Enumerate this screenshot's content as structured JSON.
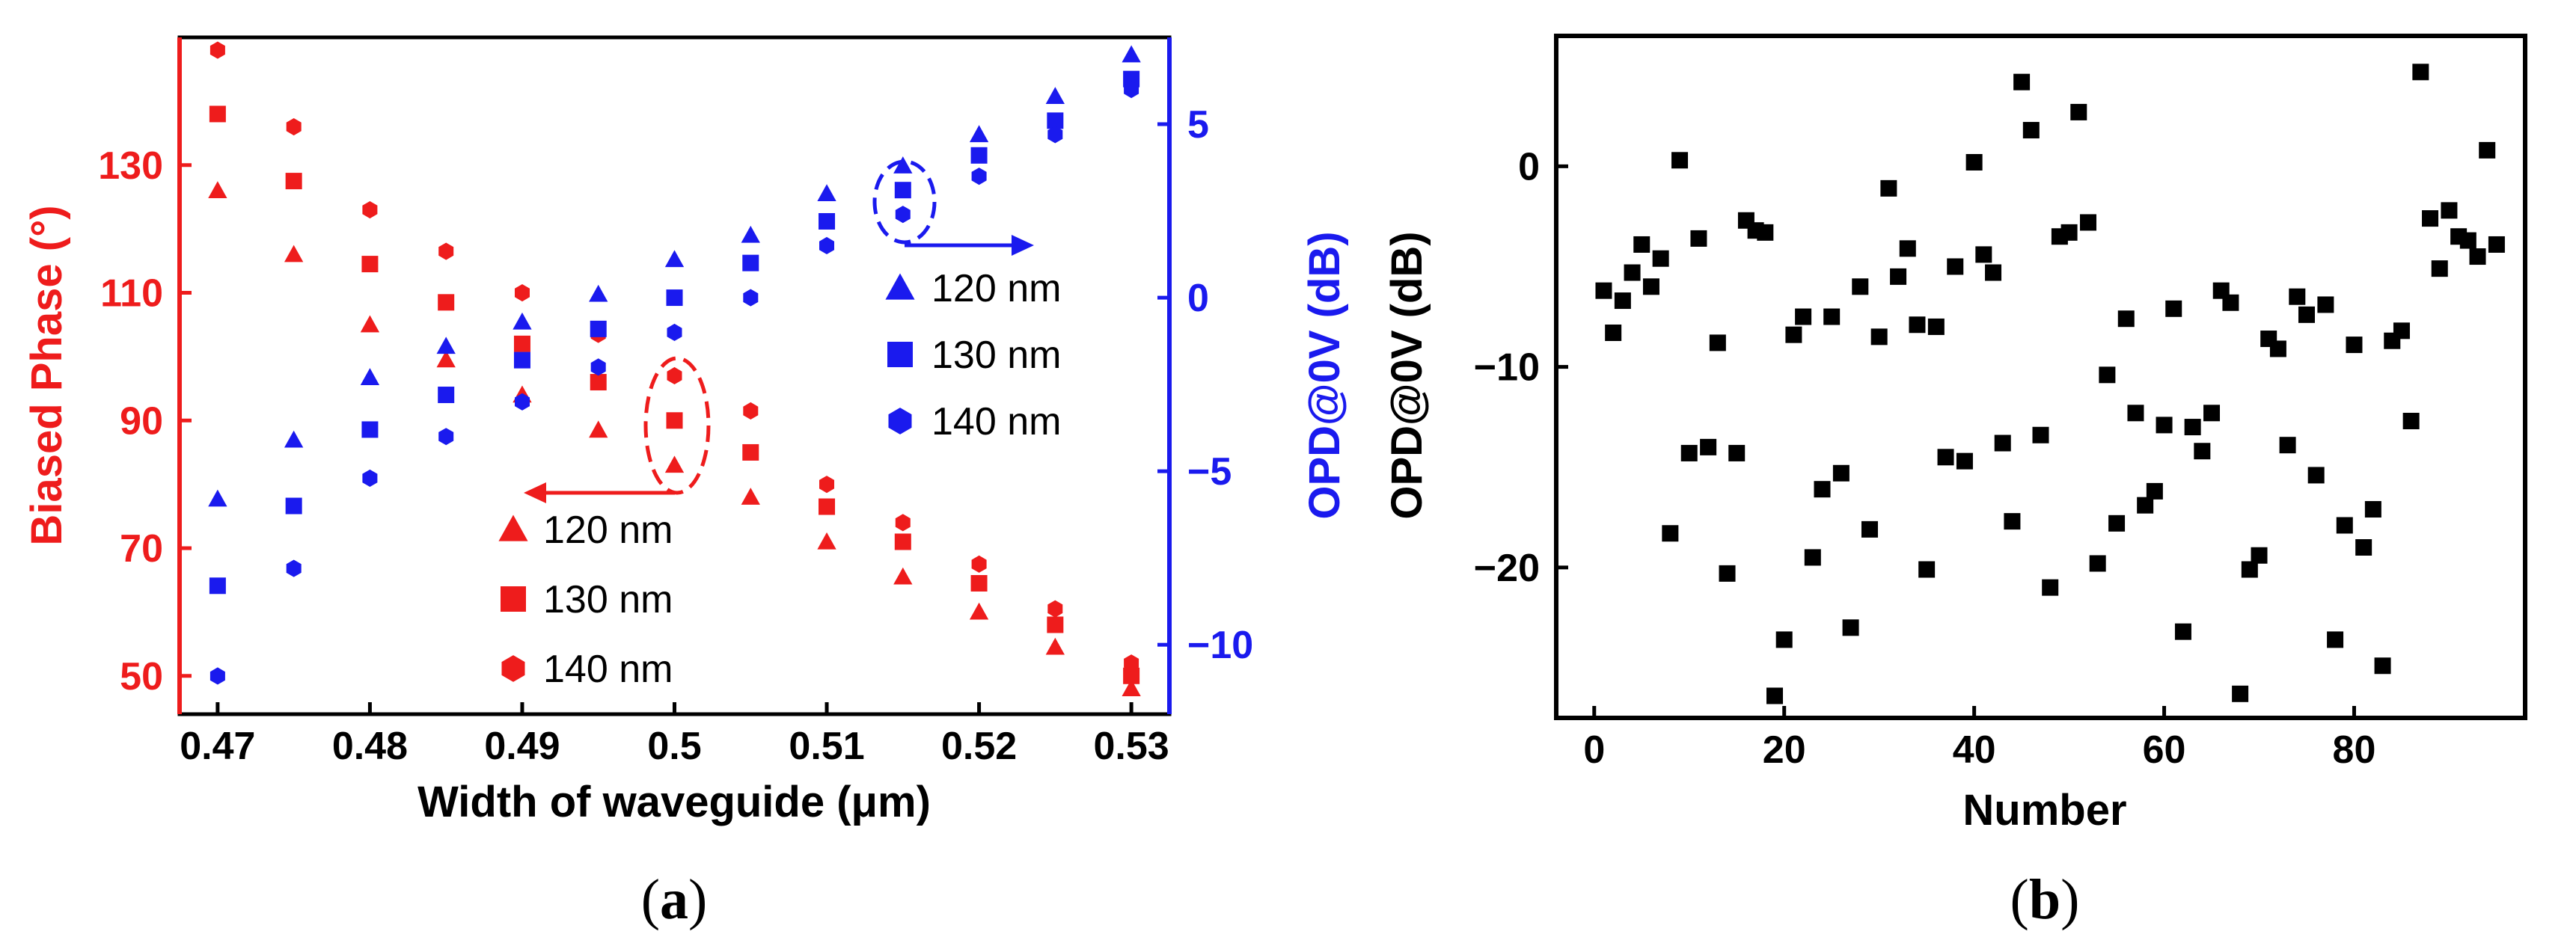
{
  "colors": {
    "red": "#ee1c1c",
    "blue": "#1a1aee",
    "black": "#000000"
  },
  "chart_data": [
    {
      "panel": "a",
      "type": "scatter",
      "xlabel": "Width of waveguide (μm)",
      "ylabel_left": "Biased Phase (°)",
      "ylabel_right": "OPD@0V (dB)",
      "xlim": [
        0.4675,
        0.5325
      ],
      "ylim_left": [
        44,
        150
      ],
      "ylim_right": [
        -12,
        7.5
      ],
      "xticks": [
        "0.47",
        "0.48",
        "0.49",
        "0.5",
        "0.51",
        "0.52",
        "0.53"
      ],
      "xtick_values": [
        0.47,
        0.48,
        0.49,
        0.5,
        0.51,
        0.52,
        0.53
      ],
      "yticks_left": [
        "50",
        "70",
        "90",
        "110",
        "130"
      ],
      "ytick_values_left": [
        50,
        70,
        90,
        110,
        130
      ],
      "yticks_right": [
        "−10",
        "−5",
        "0",
        "5"
      ],
      "ytick_values_right": [
        -10,
        -5,
        0,
        5
      ],
      "x": [
        0.47,
        0.475,
        0.48,
        0.485,
        0.49,
        0.495,
        0.5,
        0.505,
        0.51,
        0.515,
        0.52,
        0.525,
        0.53
      ],
      "series": [
        {
          "name": "120 nm",
          "axis": "left",
          "marker": "triangle",
          "values": [
            126,
            116,
            105,
            99.5,
            94,
            88.5,
            83,
            78,
            71,
            65.5,
            60,
            54.5,
            48
          ]
        },
        {
          "name": "130 nm",
          "axis": "left",
          "marker": "square",
          "values": [
            138,
            127.5,
            114.5,
            108.5,
            102,
            96,
            90,
            85,
            76.5,
            71,
            64.5,
            58,
            50
          ]
        },
        {
          "name": "140 nm",
          "axis": "left",
          "marker": "hexagon",
          "values": [
            148,
            136,
            123,
            116.5,
            110,
            103.5,
            97,
            91.5,
            80,
            74,
            67.5,
            60.5,
            52
          ]
        },
        {
          "name": "120 nm",
          "axis": "right",
          "marker": "triangle",
          "values": [
            -5.8,
            -4.1,
            -2.3,
            -1.4,
            -0.7,
            0.1,
            1.1,
            1.8,
            3.0,
            3.8,
            4.7,
            5.8,
            7.0
          ]
        },
        {
          "name": "130 nm",
          "axis": "right",
          "marker": "square",
          "values": [
            -8.3,
            -6.0,
            -3.8,
            -2.8,
            -1.8,
            -0.9,
            0.0,
            1.0,
            2.2,
            3.1,
            4.1,
            5.1,
            6.3
          ]
        },
        {
          "name": "140 nm",
          "axis": "right",
          "marker": "hexagon",
          "values": [
            -10.9,
            -7.8,
            -5.2,
            -4.0,
            -3.0,
            -2.0,
            -1.0,
            0.0,
            1.5,
            2.4,
            3.5,
            4.7,
            6.0
          ]
        }
      ],
      "legend_left": [
        "120 nm",
        "130 nm",
        "140 nm"
      ],
      "legend_right": [
        "120 nm",
        "130 nm",
        "140 nm"
      ],
      "panel_label": "(a)"
    },
    {
      "panel": "b",
      "type": "scatter",
      "xlabel": "Number",
      "ylabel": "OPD@0V (dB)",
      "xlim": [
        -4,
        98
      ],
      "ylim": [
        -27.5,
        6.5
      ],
      "xticks": [
        "0",
        "20",
        "40",
        "60",
        "80"
      ],
      "xtick_values": [
        0,
        20,
        40,
        60,
        80
      ],
      "yticks": [
        "0",
        "−10",
        "−20"
      ],
      "ytick_values": [
        0,
        -10,
        -20
      ],
      "marker": "square",
      "x": [
        1,
        2,
        3,
        4,
        5,
        6,
        7,
        8,
        9,
        10,
        11,
        12,
        13,
        14,
        15,
        16,
        17,
        18,
        19,
        20,
        21,
        22,
        23,
        24,
        25,
        26,
        27,
        28,
        29,
        30,
        31,
        32,
        33,
        34,
        35,
        36,
        37,
        38,
        39,
        40,
        41,
        42,
        43,
        44,
        45,
        46,
        47,
        48,
        49,
        50,
        51,
        52,
        53,
        54,
        55,
        56,
        57,
        58,
        59,
        60,
        61,
        62,
        63,
        64,
        65,
        66,
        67,
        68,
        69,
        70,
        71,
        72,
        73,
        74,
        75,
        76,
        77,
        78,
        79,
        80,
        81,
        82,
        83,
        84,
        85,
        86,
        87,
        88,
        89,
        90,
        91,
        92,
        93,
        94,
        95
      ],
      "values": [
        -6.2,
        -8.3,
        -6.7,
        -5.3,
        -3.9,
        -6.0,
        -4.6,
        -18.3,
        0.3,
        -14.3,
        -3.6,
        -14.0,
        -8.8,
        -20.3,
        -14.3,
        -2.7,
        -3.2,
        -3.3,
        -26.4,
        -23.6,
        -8.4,
        -7.5,
        -19.5,
        -16.1,
        -7.5,
        -15.3,
        -23.0,
        -6.0,
        -18.1,
        -8.5,
        -1.1,
        -5.5,
        -4.1,
        -7.9,
        -20.1,
        -8.0,
        -14.5,
        -5.0,
        -14.7,
        0.2,
        -4.4,
        -5.3,
        -13.8,
        -17.7,
        4.2,
        1.8,
        -13.4,
        -21.0,
        -3.5,
        -3.3,
        2.7,
        -2.8,
        -19.8,
        -10.4,
        -17.8,
        -7.6,
        -12.3,
        -16.9,
        -16.2,
        -12.9,
        -7.1,
        -23.2,
        -13.0,
        -14.2,
        -12.3,
        -6.2,
        -6.8,
        -26.3,
        -20.1,
        -19.4,
        -8.6,
        -9.1,
        -13.9,
        -6.5,
        -7.4,
        -15.4,
        -6.9,
        -23.6,
        -17.9,
        -8.9,
        -19.0,
        -17.1,
        -24.9,
        -8.7,
        -8.2,
        -12.7,
        4.7,
        -2.6,
        -5.1,
        -2.2,
        -3.5,
        -3.7,
        -4.5,
        0.8,
        -3.9
      ],
      "panel_label": "(b)"
    }
  ]
}
